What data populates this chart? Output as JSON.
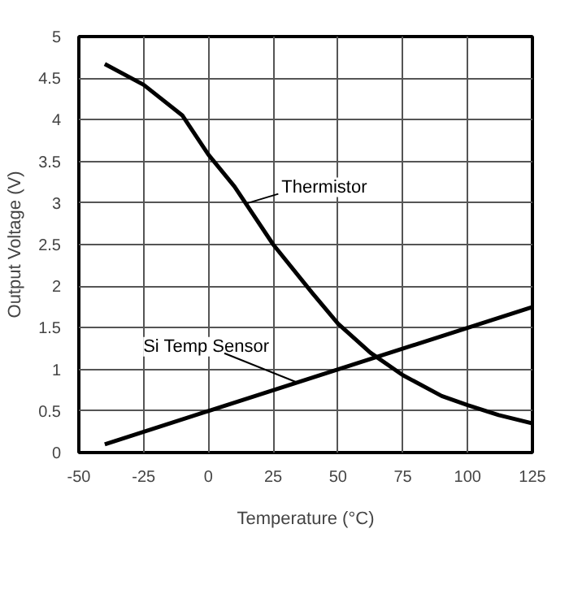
{
  "chart_data": {
    "type": "line",
    "xlabel": "Temperature (°C)",
    "ylabel": "Output Voltage (V)",
    "xlim": [
      -50,
      125
    ],
    "xticks": [
      -50,
      -25,
      0,
      25,
      50,
      75,
      100,
      125
    ],
    "ylim": [
      0,
      5
    ],
    "yticks": [
      0,
      0.5,
      1,
      1.5,
      2,
      2.5,
      3,
      3.5,
      4,
      4.5,
      5
    ],
    "grid": true,
    "marker": "none",
    "line_style": "solid",
    "series": [
      {
        "name": "Thermistor",
        "color": "#000000",
        "x": [
          -40,
          -25,
          -10,
          0,
          10,
          25,
          40,
          50,
          62.5,
          75,
          90,
          100,
          112,
          125
        ],
        "values": [
          4.67,
          4.42,
          4.05,
          3.58,
          3.2,
          2.5,
          1.92,
          1.55,
          1.2,
          0.93,
          0.68,
          0.57,
          0.45,
          0.35
        ]
      },
      {
        "name": "Si Temp Sensor",
        "color": "#000000",
        "x": [
          -40,
          125
        ],
        "values": [
          0.1,
          1.75
        ]
      }
    ]
  }
}
